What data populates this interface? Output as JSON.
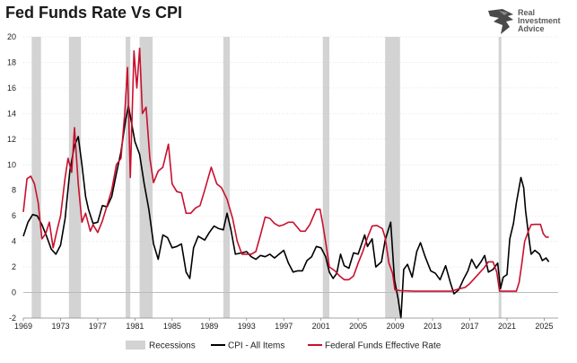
{
  "title": "Fed Funds Rate Vs CPI",
  "logo": {
    "line1": "Real",
    "line2": "Investment",
    "line3": "Advice"
  },
  "colors": {
    "cpi": "#000000",
    "fed": "#c8102e",
    "recession": "#d3d3d3",
    "grid": "#cccccc",
    "zero": "#bbbbbb"
  },
  "chart_data": {
    "type": "line",
    "title": "Fed Funds Rate Vs CPI",
    "xlabel": "",
    "ylabel": "",
    "xlim": [
      1969,
      2026.5
    ],
    "ylim": [
      -2,
      20
    ],
    "x_ticks": [
      1969,
      1973,
      1977,
      1981,
      1985,
      1989,
      1993,
      1997,
      2001,
      2005,
      2009,
      2013,
      2017,
      2021,
      2025
    ],
    "y_ticks": [
      -2,
      0,
      2,
      4,
      6,
      8,
      10,
      12,
      14,
      16,
      18,
      20
    ],
    "grid": "horizontal",
    "legend": "bottom",
    "recessions": [
      [
        1969.9,
        1970.9
      ],
      [
        1973.9,
        1975.2
      ],
      [
        1980.0,
        1980.5
      ],
      [
        1981.5,
        1982.9
      ],
      [
        1990.5,
        1991.2
      ],
      [
        2001.2,
        2001.9
      ],
      [
        2007.9,
        2009.5
      ],
      [
        2020.1,
        2020.4
      ]
    ],
    "legend_labels": {
      "recession": "Recessions",
      "cpi": "CPI - All Items",
      "fed": "Federal Funds Effective Rate"
    },
    "series": [
      {
        "name": "CPI - All Items",
        "color": "#000000",
        "points": [
          [
            1969.0,
            4.4
          ],
          [
            1969.5,
            5.5
          ],
          [
            1970.0,
            6.1
          ],
          [
            1970.5,
            6.0
          ],
          [
            1971.0,
            5.3
          ],
          [
            1971.5,
            4.4
          ],
          [
            1972.0,
            3.4
          ],
          [
            1972.5,
            3.0
          ],
          [
            1973.0,
            3.7
          ],
          [
            1973.5,
            5.8
          ],
          [
            1974.0,
            9.5
          ],
          [
            1974.5,
            11.5
          ],
          [
            1974.9,
            12.2
          ],
          [
            1975.3,
            10.0
          ],
          [
            1975.7,
            7.5
          ],
          [
            1976.0,
            6.5
          ],
          [
            1976.5,
            5.4
          ],
          [
            1977.0,
            5.5
          ],
          [
            1977.5,
            6.8
          ],
          [
            1978.0,
            6.7
          ],
          [
            1978.5,
            7.5
          ],
          [
            1979.0,
            9.3
          ],
          [
            1979.5,
            11.0
          ],
          [
            1980.0,
            13.5
          ],
          [
            1980.3,
            14.6
          ],
          [
            1980.7,
            13.0
          ],
          [
            1981.0,
            11.8
          ],
          [
            1981.5,
            10.8
          ],
          [
            1982.0,
            8.5
          ],
          [
            1982.5,
            6.5
          ],
          [
            1983.0,
            3.8
          ],
          [
            1983.5,
            2.6
          ],
          [
            1984.0,
            4.5
          ],
          [
            1984.5,
            4.3
          ],
          [
            1985.0,
            3.5
          ],
          [
            1985.5,
            3.6
          ],
          [
            1986.0,
            3.8
          ],
          [
            1986.5,
            1.6
          ],
          [
            1986.9,
            1.1
          ],
          [
            1987.3,
            3.5
          ],
          [
            1987.8,
            4.4
          ],
          [
            1988.5,
            4.1
          ],
          [
            1989.0,
            4.7
          ],
          [
            1989.5,
            5.2
          ],
          [
            1990.0,
            5.0
          ],
          [
            1990.5,
            4.9
          ],
          [
            1990.9,
            6.2
          ],
          [
            1991.3,
            5.0
          ],
          [
            1991.8,
            3.0
          ],
          [
            1992.5,
            3.1
          ],
          [
            1993.0,
            3.2
          ],
          [
            1993.5,
            2.8
          ],
          [
            1994.0,
            2.6
          ],
          [
            1994.5,
            2.9
          ],
          [
            1995.0,
            2.8
          ],
          [
            1995.5,
            3.0
          ],
          [
            1996.0,
            2.7
          ],
          [
            1996.5,
            3.0
          ],
          [
            1997.0,
            3.3
          ],
          [
            1997.5,
            2.3
          ],
          [
            1998.0,
            1.6
          ],
          [
            1998.5,
            1.7
          ],
          [
            1999.0,
            1.7
          ],
          [
            1999.5,
            2.5
          ],
          [
            2000.0,
            2.8
          ],
          [
            2000.5,
            3.6
          ],
          [
            2001.0,
            3.5
          ],
          [
            2001.5,
            2.8
          ],
          [
            2001.9,
            1.6
          ],
          [
            2002.3,
            1.1
          ],
          [
            2002.7,
            1.5
          ],
          [
            2003.1,
            3.0
          ],
          [
            2003.5,
            2.1
          ],
          [
            2004.0,
            1.9
          ],
          [
            2004.5,
            3.1
          ],
          [
            2005.0,
            3.0
          ],
          [
            2005.7,
            4.5
          ],
          [
            2006.0,
            3.6
          ],
          [
            2006.5,
            4.2
          ],
          [
            2006.9,
            2.0
          ],
          [
            2007.5,
            2.4
          ],
          [
            2007.9,
            4.1
          ],
          [
            2008.5,
            5.5
          ],
          [
            2008.9,
            1.0
          ],
          [
            2009.3,
            -0.5
          ],
          [
            2009.6,
            -2.0
          ],
          [
            2009.9,
            1.8
          ],
          [
            2010.3,
            2.2
          ],
          [
            2010.8,
            1.2
          ],
          [
            2011.3,
            3.2
          ],
          [
            2011.7,
            3.9
          ],
          [
            2012.2,
            2.8
          ],
          [
            2012.8,
            1.7
          ],
          [
            2013.3,
            1.5
          ],
          [
            2013.8,
            1.0
          ],
          [
            2014.4,
            2.1
          ],
          [
            2014.9,
            0.8
          ],
          [
            2015.3,
            -0.1
          ],
          [
            2015.8,
            0.2
          ],
          [
            2016.3,
            1.0
          ],
          [
            2016.8,
            1.7
          ],
          [
            2017.2,
            2.6
          ],
          [
            2017.7,
            1.9
          ],
          [
            2018.2,
            2.4
          ],
          [
            2018.6,
            2.9
          ],
          [
            2019.0,
            1.6
          ],
          [
            2019.5,
            1.8
          ],
          [
            2020.0,
            2.3
          ],
          [
            2020.3,
            0.3
          ],
          [
            2020.6,
            1.2
          ],
          [
            2021.0,
            1.4
          ],
          [
            2021.3,
            4.2
          ],
          [
            2021.7,
            5.4
          ],
          [
            2022.0,
            7.0
          ],
          [
            2022.5,
            9.0
          ],
          [
            2022.8,
            8.2
          ],
          [
            2023.0,
            6.4
          ],
          [
            2023.4,
            4.0
          ],
          [
            2023.6,
            3.0
          ],
          [
            2024.0,
            3.3
          ],
          [
            2024.5,
            3.0
          ],
          [
            2024.8,
            2.5
          ],
          [
            2025.2,
            2.7
          ],
          [
            2025.5,
            2.4
          ]
        ]
      },
      {
        "name": "Federal Funds Effective Rate",
        "color": "#c8102e",
        "points": [
          [
            1969.0,
            6.3
          ],
          [
            1969.4,
            8.9
          ],
          [
            1969.8,
            9.1
          ],
          [
            1970.2,
            8.5
          ],
          [
            1970.6,
            7.0
          ],
          [
            1971.0,
            4.2
          ],
          [
            1971.4,
            4.6
          ],
          [
            1971.8,
            5.5
          ],
          [
            1972.2,
            3.5
          ],
          [
            1972.6,
            4.8
          ],
          [
            1973.0,
            6.0
          ],
          [
            1973.5,
            9.0
          ],
          [
            1973.8,
            10.5
          ],
          [
            1974.2,
            9.4
          ],
          [
            1974.5,
            12.9
          ],
          [
            1974.9,
            8.5
          ],
          [
            1975.3,
            5.5
          ],
          [
            1975.7,
            6.2
          ],
          [
            1976.2,
            4.8
          ],
          [
            1976.5,
            5.3
          ],
          [
            1977.0,
            4.7
          ],
          [
            1977.5,
            5.6
          ],
          [
            1978.0,
            6.8
          ],
          [
            1978.5,
            8.0
          ],
          [
            1979.0,
            10.0
          ],
          [
            1979.5,
            10.5
          ],
          [
            1979.9,
            14.0
          ],
          [
            1980.2,
            17.6
          ],
          [
            1980.5,
            9.0
          ],
          [
            1980.9,
            18.9
          ],
          [
            1981.2,
            16.0
          ],
          [
            1981.5,
            19.1
          ],
          [
            1981.8,
            14.0
          ],
          [
            1982.2,
            14.5
          ],
          [
            1982.6,
            10.5
          ],
          [
            1983.0,
            8.6
          ],
          [
            1983.5,
            9.5
          ],
          [
            1984.0,
            9.8
          ],
          [
            1984.6,
            11.6
          ],
          [
            1985.0,
            8.5
          ],
          [
            1985.5,
            7.9
          ],
          [
            1986.0,
            7.8
          ],
          [
            1986.5,
            6.2
          ],
          [
            1987.0,
            6.2
          ],
          [
            1987.5,
            6.6
          ],
          [
            1988.0,
            6.8
          ],
          [
            1988.5,
            8.0
          ],
          [
            1989.2,
            9.8
          ],
          [
            1989.8,
            8.5
          ],
          [
            1990.3,
            8.2
          ],
          [
            1990.9,
            7.3
          ],
          [
            1991.5,
            5.8
          ],
          [
            1992.0,
            4.0
          ],
          [
            1992.5,
            3.0
          ],
          [
            1993.0,
            3.0
          ],
          [
            1993.5,
            3.0
          ],
          [
            1994.0,
            3.2
          ],
          [
            1994.5,
            4.5
          ],
          [
            1995.0,
            5.9
          ],
          [
            1995.5,
            5.8
          ],
          [
            1996.0,
            5.4
          ],
          [
            1996.5,
            5.2
          ],
          [
            1997.0,
            5.3
          ],
          [
            1997.5,
            5.5
          ],
          [
            1998.0,
            5.5
          ],
          [
            1998.8,
            4.8
          ],
          [
            1999.3,
            4.8
          ],
          [
            1999.8,
            5.3
          ],
          [
            2000.5,
            6.5
          ],
          [
            2000.9,
            6.5
          ],
          [
            2001.2,
            5.3
          ],
          [
            2001.6,
            3.5
          ],
          [
            2001.9,
            2.0
          ],
          [
            2002.5,
            1.7
          ],
          [
            2003.0,
            1.3
          ],
          [
            2003.5,
            1.0
          ],
          [
            2004.0,
            1.0
          ],
          [
            2004.5,
            1.3
          ],
          [
            2005.0,
            2.3
          ],
          [
            2005.5,
            3.2
          ],
          [
            2006.0,
            4.3
          ],
          [
            2006.5,
            5.2
          ],
          [
            2007.0,
            5.25
          ],
          [
            2007.6,
            5.0
          ],
          [
            2007.9,
            4.3
          ],
          [
            2008.3,
            2.3
          ],
          [
            2008.7,
            1.5
          ],
          [
            2008.95,
            0.2
          ],
          [
            2009.5,
            0.15
          ],
          [
            2011.0,
            0.1
          ],
          [
            2013.0,
            0.1
          ],
          [
            2015.0,
            0.1
          ],
          [
            2015.9,
            0.3
          ],
          [
            2016.5,
            0.4
          ],
          [
            2017.0,
            0.7
          ],
          [
            2017.5,
            1.1
          ],
          [
            2018.0,
            1.5
          ],
          [
            2018.5,
            1.9
          ],
          [
            2019.0,
            2.4
          ],
          [
            2019.5,
            2.4
          ],
          [
            2019.9,
            1.6
          ],
          [
            2020.2,
            0.1
          ],
          [
            2021.0,
            0.1
          ],
          [
            2022.0,
            0.1
          ],
          [
            2022.3,
            0.8
          ],
          [
            2022.6,
            2.3
          ],
          [
            2022.9,
            4.0
          ],
          [
            2023.3,
            4.8
          ],
          [
            2023.6,
            5.3
          ],
          [
            2024.0,
            5.33
          ],
          [
            2024.6,
            5.33
          ],
          [
            2024.9,
            4.6
          ],
          [
            2025.2,
            4.33
          ],
          [
            2025.5,
            4.33
          ]
        ]
      }
    ]
  }
}
